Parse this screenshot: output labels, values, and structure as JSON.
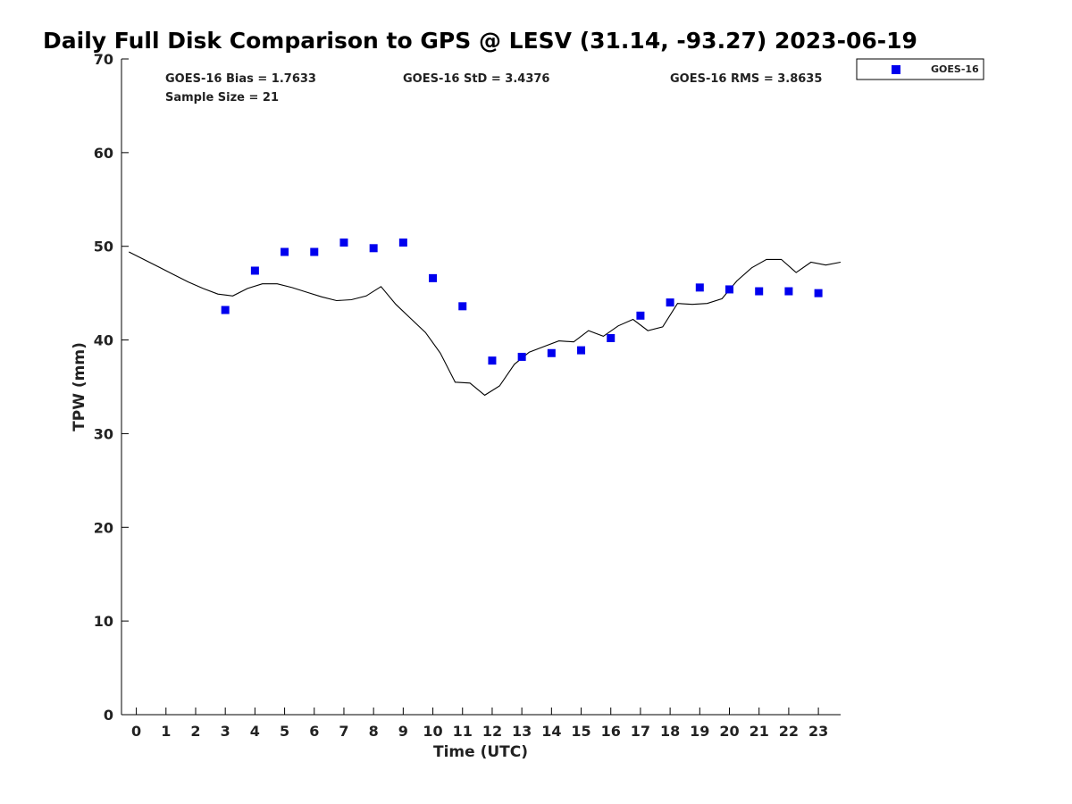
{
  "chart_data": {
    "type": "scatter",
    "title": "Daily Full Disk Comparison to GPS @ LESV (31.14, -93.27) 2023-06-19",
    "xlabel": "Time (UTC)",
    "ylabel": "TPW (mm)",
    "xlim": [
      -0.5,
      23.75
    ],
    "ylim": [
      0,
      70
    ],
    "x_ticks": [
      0,
      1,
      2,
      3,
      4,
      5,
      6,
      7,
      8,
      9,
      10,
      11,
      12,
      13,
      14,
      15,
      16,
      17,
      18,
      19,
      20,
      21,
      22,
      23
    ],
    "y_ticks": [
      0,
      10,
      20,
      30,
      40,
      50,
      60,
      70
    ],
    "grid": false,
    "legend_position": "top-right",
    "stats": [
      "GOES-16 Bias = 1.7633",
      "GOES-16 StD = 3.4376",
      "GOES-16 RMS = 3.8635",
      "Sample Size = 21"
    ],
    "series": [
      {
        "name": "GOES-16",
        "type": "scatter",
        "color": "#0000ee",
        "marker": "square",
        "x": [
          3,
          4,
          5,
          6,
          7,
          8,
          9,
          10,
          11,
          12,
          13,
          14,
          15,
          16,
          17,
          18,
          19,
          20,
          21,
          22,
          23
        ],
        "y": [
          43.2,
          47.4,
          49.4,
          49.4,
          50.4,
          49.8,
          50.4,
          46.6,
          43.6,
          37.8,
          38.2,
          38.6,
          38.9,
          40.2,
          42.6,
          44.0,
          45.6,
          45.4,
          45.2,
          45.2,
          45.0
        ]
      },
      {
        "type": "line",
        "color": "#000000",
        "x": [
          -0.25,
          0.25,
          0.75,
          1.25,
          1.75,
          2.25,
          2.75,
          3.25,
          3.75,
          4.25,
          4.75,
          5.25,
          5.75,
          6.25,
          6.75,
          7.25,
          7.75,
          8.25,
          8.75,
          9.25,
          9.75,
          10.25,
          10.75,
          11.25,
          11.75,
          12.25,
          12.75,
          13.25,
          13.75,
          14.25,
          14.75,
          15.25,
          15.75,
          16.25,
          16.75,
          17.25,
          17.75,
          18.25,
          18.75,
          19.25,
          19.75,
          20.25,
          20.75,
          21.25,
          21.75,
          22.25,
          22.75,
          23.25,
          23.75
        ],
        "y": [
          49.4,
          48.6,
          47.8,
          47.0,
          46.2,
          45.5,
          44.9,
          44.7,
          45.5,
          46.0,
          46.0,
          45.6,
          45.1,
          44.6,
          44.2,
          44.3,
          44.7,
          45.7,
          43.8,
          42.3,
          40.8,
          38.6,
          35.5,
          35.4,
          34.1,
          35.1,
          37.4,
          38.7,
          39.3,
          39.9,
          39.8,
          41.0,
          40.4,
          41.5,
          42.2,
          41.0,
          41.4,
          43.9,
          43.8,
          43.9,
          44.4,
          46.3,
          47.7,
          48.6,
          48.6,
          47.2,
          48.3,
          48.0,
          48.3
        ]
      }
    ]
  }
}
